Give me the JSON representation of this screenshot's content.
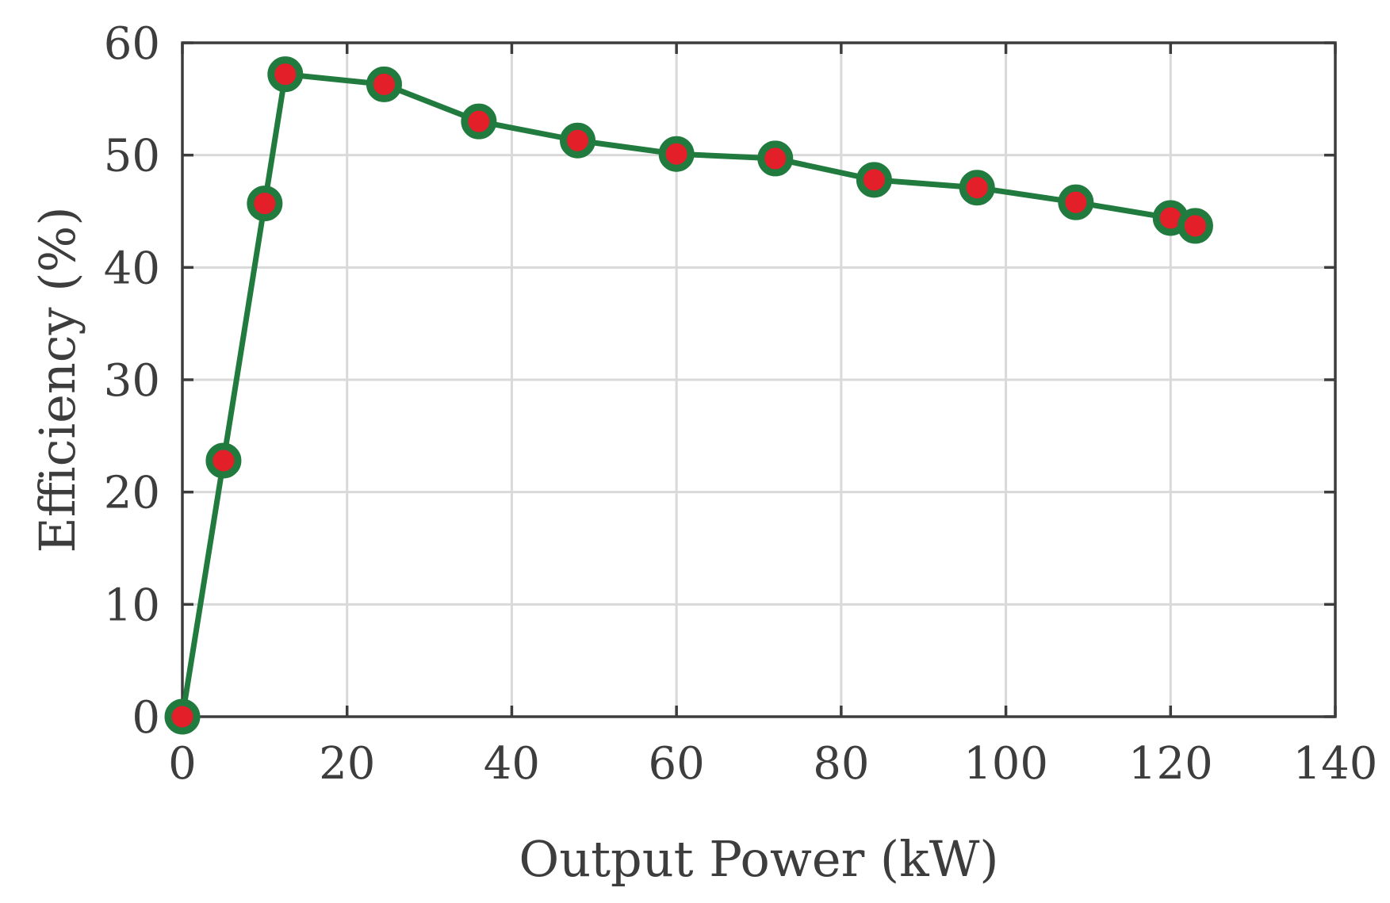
{
  "chart_data": {
    "type": "line",
    "xlabel": "Output Power (kW)",
    "ylabel": "Efficiency (%)",
    "xlim": [
      0,
      140
    ],
    "ylim": [
      0,
      60
    ],
    "xticks": [
      0,
      20,
      40,
      60,
      80,
      100,
      120,
      140
    ],
    "yticks": [
      0,
      10,
      20,
      30,
      40,
      50,
      60
    ],
    "grid": true,
    "series": [
      {
        "x": [
          0,
          5,
          10,
          12.5,
          24.5,
          36,
          48,
          60,
          72,
          84,
          96.5,
          108.5,
          120,
          123
        ],
        "y": [
          0,
          22.8,
          45.7,
          57.2,
          56.3,
          53.0,
          51.3,
          50.1,
          49.7,
          47.8,
          47.1,
          45.8,
          44.4,
          43.7
        ],
        "line_color": "#217a3e",
        "marker_face_color": "#e3202a",
        "marker_edge_color": "#217a3e"
      }
    ],
    "colors": {
      "axis": "#3d3d3d",
      "grid": "#d9d9d9"
    }
  }
}
